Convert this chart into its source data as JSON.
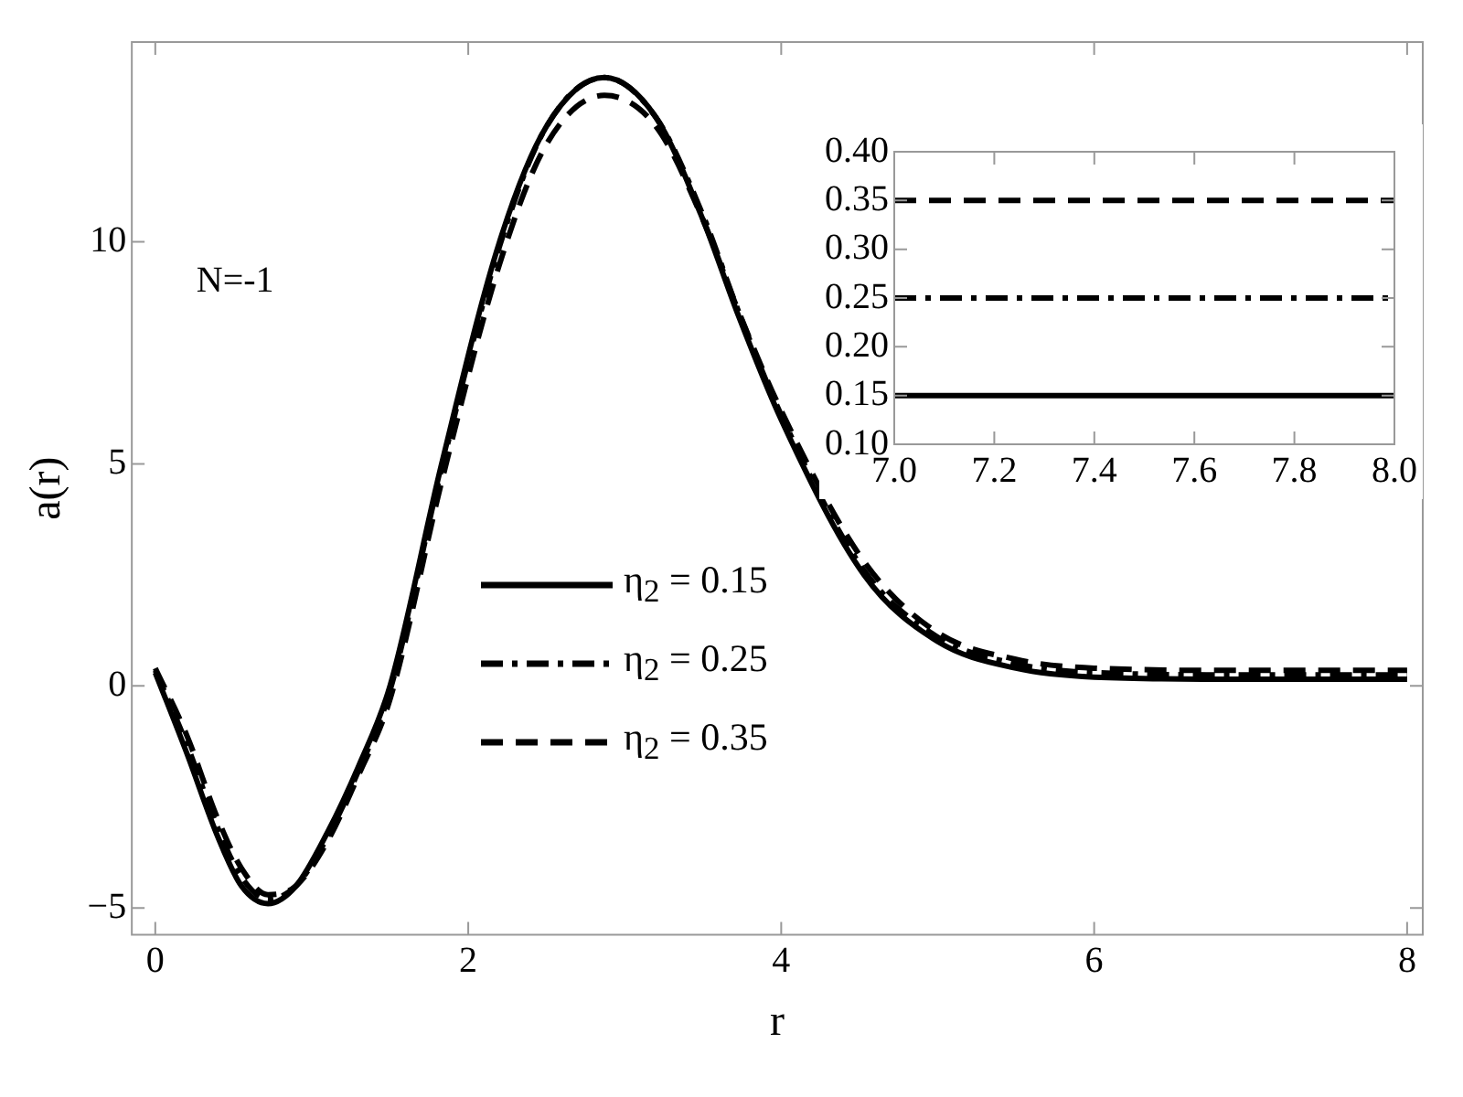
{
  "chart_data": [
    {
      "type": "line",
      "xlabel": "r",
      "ylabel": "a(r)",
      "annotations": [
        "N=-1"
      ],
      "xlim": [
        -0.15,
        8.1
      ],
      "ylim": [
        -5.6,
        14.5
      ],
      "xticks": [
        0,
        2,
        4,
        6,
        8
      ],
      "yticks": [
        {
          "value": -5,
          "label": "−5"
        },
        0,
        5,
        10
      ],
      "legend": "center",
      "series": [
        {
          "name": "η$_{2}$ = 0.15",
          "color": "#000000",
          "line_style": "solid",
          "x": [
            0,
            0.2,
            0.4,
            0.55,
            0.72,
            0.9,
            1.1,
            1.3,
            1.5,
            1.83,
            2.2,
            2.5,
            2.87,
            3.2,
            3.5,
            3.72,
            4.0,
            4.53,
            5.0,
            5.5,
            6.0,
            7.0,
            8.0
          ],
          "values": [
            0.3,
            -1.5,
            -3.4,
            -4.5,
            -4.9,
            -4.5,
            -3.3,
            -1.8,
            0,
            5,
            10,
            12.6,
            13.7,
            12.8,
            10.5,
            8.4,
            6.0,
            2.5,
            1.0,
            0.4,
            0.2,
            0.15,
            0.15
          ]
        },
        {
          "name": "η$_{2}$ = 0.25",
          "color": "#000000",
          "line_style": "dashdot",
          "x": [
            0,
            0.2,
            0.4,
            0.55,
            0.72,
            0.9,
            1.1,
            1.3,
            1.5,
            1.83,
            2.2,
            2.5,
            2.87,
            3.2,
            3.5,
            3.72,
            4.0,
            4.53,
            5.0,
            5.5,
            6.0,
            7.0,
            8.0
          ],
          "values": [
            0.35,
            -1.3,
            -3.2,
            -4.3,
            -4.8,
            -4.5,
            -3.4,
            -1.9,
            -0.1,
            4.9,
            9.9,
            12.6,
            13.7,
            12.8,
            10.6,
            8.5,
            6.1,
            2.6,
            1.1,
            0.5,
            0.3,
            0.25,
            0.25
          ]
        },
        {
          "name": "η$_{2}$ = 0.35",
          "color": "#000000",
          "line_style": "dashed",
          "x": [
            0,
            0.2,
            0.4,
            0.55,
            0.72,
            0.9,
            1.1,
            1.3,
            1.5,
            1.83,
            2.2,
            2.5,
            2.87,
            3.2,
            3.5,
            3.72,
            4.0,
            4.53,
            5.0,
            5.5,
            6.0,
            7.0,
            8.0
          ],
          "values": [
            0.4,
            -1.1,
            -3.0,
            -4.1,
            -4.7,
            -4.5,
            -3.5,
            -2.0,
            -0.3,
            4.6,
            9.5,
            12.2,
            13.3,
            12.6,
            10.5,
            8.5,
            6.2,
            2.8,
            1.2,
            0.6,
            0.4,
            0.35,
            0.35
          ]
        }
      ]
    },
    {
      "type": "line",
      "xlim": [
        7,
        8
      ],
      "ylim": [
        0.1,
        0.4
      ],
      "xticks": [
        {
          "value": 7,
          "label": "7.0"
        },
        {
          "value": 7.2,
          "label": "7.2"
        },
        {
          "value": 7.4,
          "label": "7.4"
        },
        {
          "value": 7.6,
          "label": "7.6"
        },
        {
          "value": 7.8,
          "label": "7.8"
        },
        {
          "value": 8,
          "label": "8.0"
        }
      ],
      "yticks": [
        {
          "value": 0.1,
          "label": "0.10"
        },
        {
          "value": 0.15,
          "label": "0.15"
        },
        {
          "value": 0.2,
          "label": "0.20"
        },
        {
          "value": 0.25,
          "label": "0.25"
        },
        {
          "value": 0.3,
          "label": "0.30"
        },
        {
          "value": 0.35,
          "label": "0.35"
        },
        {
          "value": 0.4,
          "label": "0.40"
        }
      ],
      "series": [
        {
          "color": "#000000",
          "line_style": "solid",
          "x": [
            7,
            8
          ],
          "values": [
            0.15,
            0.15
          ]
        },
        {
          "color": "#000000",
          "line_style": "dashdot",
          "x": [
            7,
            8
          ],
          "values": [
            0.25,
            0.25
          ]
        },
        {
          "color": "#000000",
          "line_style": "dashed",
          "x": [
            7,
            8
          ],
          "values": [
            0.35,
            0.35
          ]
        }
      ]
    }
  ]
}
